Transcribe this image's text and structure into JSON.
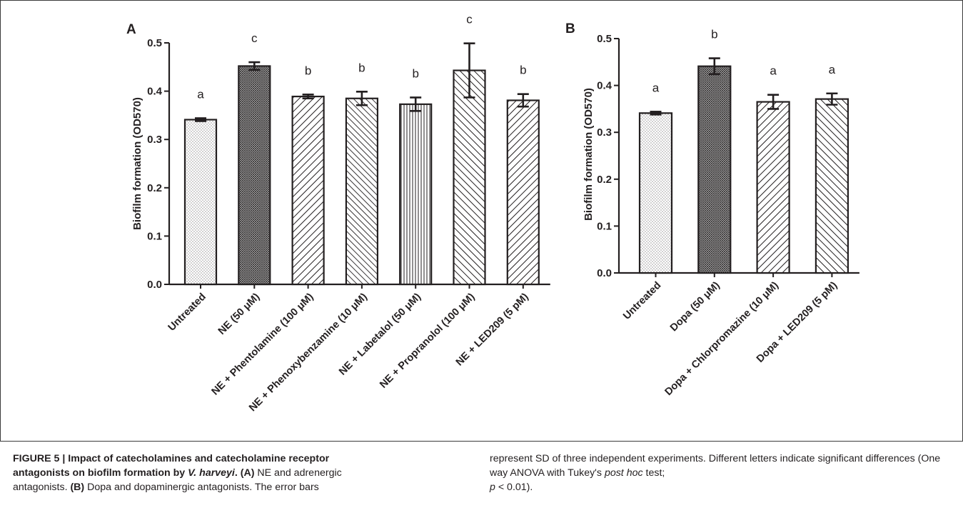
{
  "chart_data": [
    {
      "panel_label": "A",
      "type": "bar",
      "ylabel": "Biofilm formation (OD570)",
      "ylim": [
        0,
        0.5
      ],
      "yticks": [
        "0.0",
        "0.1",
        "0.2",
        "0.3",
        "0.4",
        "0.5"
      ],
      "categories": [
        "Untreated",
        "NE (50 μM)",
        "NE + Phentolamine (100 μM)",
        "NE + Phenoxybenzamine (10 μM)",
        "NE + Labetalol (50 μM)",
        "NE + Propranolol (100 μM)",
        "NE + LED209 (5 pM)"
      ],
      "values": [
        0.341,
        0.452,
        0.389,
        0.385,
        0.373,
        0.443,
        0.381
      ],
      "errors": [
        0.003,
        0.008,
        0.004,
        0.014,
        0.014,
        0.056,
        0.013
      ],
      "letters": [
        "a",
        "c",
        "b",
        "b",
        "b",
        "c",
        "b"
      ],
      "patterns": [
        "dots",
        "crosshatch",
        "diag-back",
        "diag-back-dense",
        "vertical",
        "diag-fwd",
        "diag-back"
      ]
    },
    {
      "panel_label": "B",
      "type": "bar",
      "ylabel": "Biofilm formation (OD570)",
      "ylim": [
        0,
        0.5
      ],
      "yticks": [
        "0.0",
        "0.1",
        "0.2",
        "0.3",
        "0.4",
        "0.5"
      ],
      "categories": [
        "Untreated",
        "Dopa (50 μM)",
        "Dopa + Chlorpromazine (10 μM)",
        "Dopa + LED209 (5 pM)"
      ],
      "values": [
        0.341,
        0.441,
        0.365,
        0.371
      ],
      "errors": [
        0.003,
        0.017,
        0.015,
        0.012
      ],
      "letters": [
        "a",
        "b",
        "a",
        "a"
      ],
      "patterns": [
        "dots",
        "crosshatch",
        "diag-back",
        "diag-fwd"
      ]
    }
  ],
  "caption": {
    "label": "FIGURE 5 | ",
    "title_part1": "Impact of catecholamines and catecholamine receptor antagonists on biofilm formation by ",
    "title_species": "V. harveyi",
    "title_end": ".",
    "panel_a_ref": " (A)",
    "panel_a_text": " NE and adrenergic antagonists.",
    "panel_b_ref": " (B)",
    "panel_b_text": " Dopa and dopaminergic antagonists. The error bars",
    "right_text1": "represent SD of three independent experiments. Different letters indicate significant differences (One way ANOVA with Tukey's ",
    "right_italic": "post hoc",
    "right_text2": " test; ",
    "right_p": "p",
    "right_text3": " < 0.01)."
  },
  "colors": {
    "ink": "#231f20",
    "bar_fill": "#ffffff",
    "frame": "#3b3b3b"
  }
}
